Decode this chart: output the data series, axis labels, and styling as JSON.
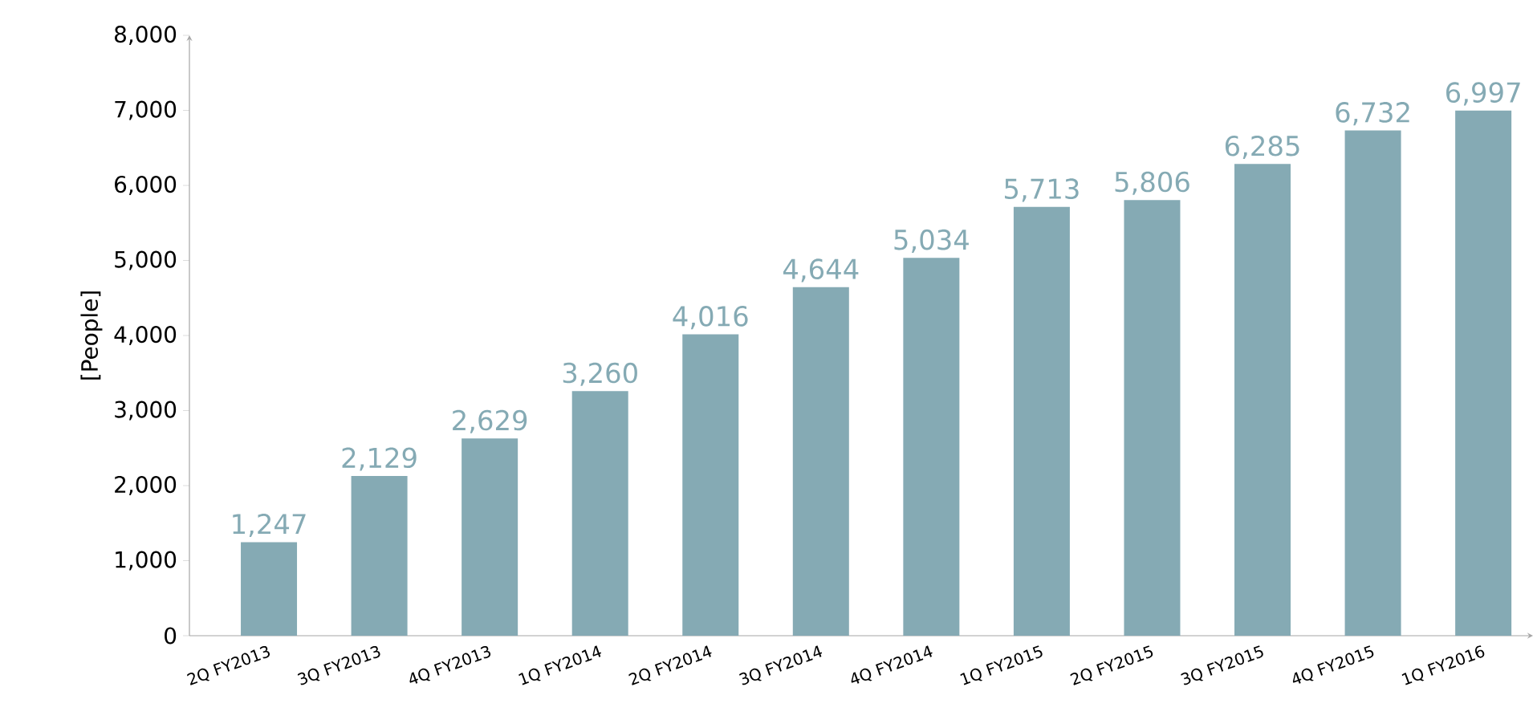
{
  "chart_data": {
    "type": "bar",
    "ylabel": "[People]",
    "categories": [
      "2Q FY2013",
      "3Q FY2013",
      "4Q FY2013",
      "1Q FY2014",
      "2Q FY2014",
      "3Q FY2014",
      "4Q FY2014",
      "1Q FY2015",
      "2Q FY2015",
      "3Q FY2015",
      "4Q FY2015",
      "1Q FY2016"
    ],
    "values": [
      1247,
      2129,
      2629,
      3260,
      4016,
      4644,
      5034,
      5713,
      5806,
      6285,
      6732,
      6997
    ],
    "value_labels": [
      "1,247",
      "2,129",
      "2,629",
      "3,260",
      "4,016",
      "4,644",
      "5,034",
      "5,713",
      "5,806",
      "6,285",
      "6,732",
      "6,997"
    ],
    "color": "#85aab4",
    "ylim": [
      0,
      8000
    ],
    "yticks": [
      {
        "value": 0,
        "label": "0"
      },
      {
        "value": 1000,
        "label": "1,000"
      },
      {
        "value": 2000,
        "label": "2,000"
      },
      {
        "value": 3000,
        "label": "3,000"
      },
      {
        "value": 4000,
        "label": "4,000"
      },
      {
        "value": 5000,
        "label": "5,000"
      },
      {
        "value": 6000,
        "label": "6,000"
      },
      {
        "value": 7000,
        "label": "7,000"
      },
      {
        "value": 8000,
        "label": "8,000"
      }
    ]
  }
}
